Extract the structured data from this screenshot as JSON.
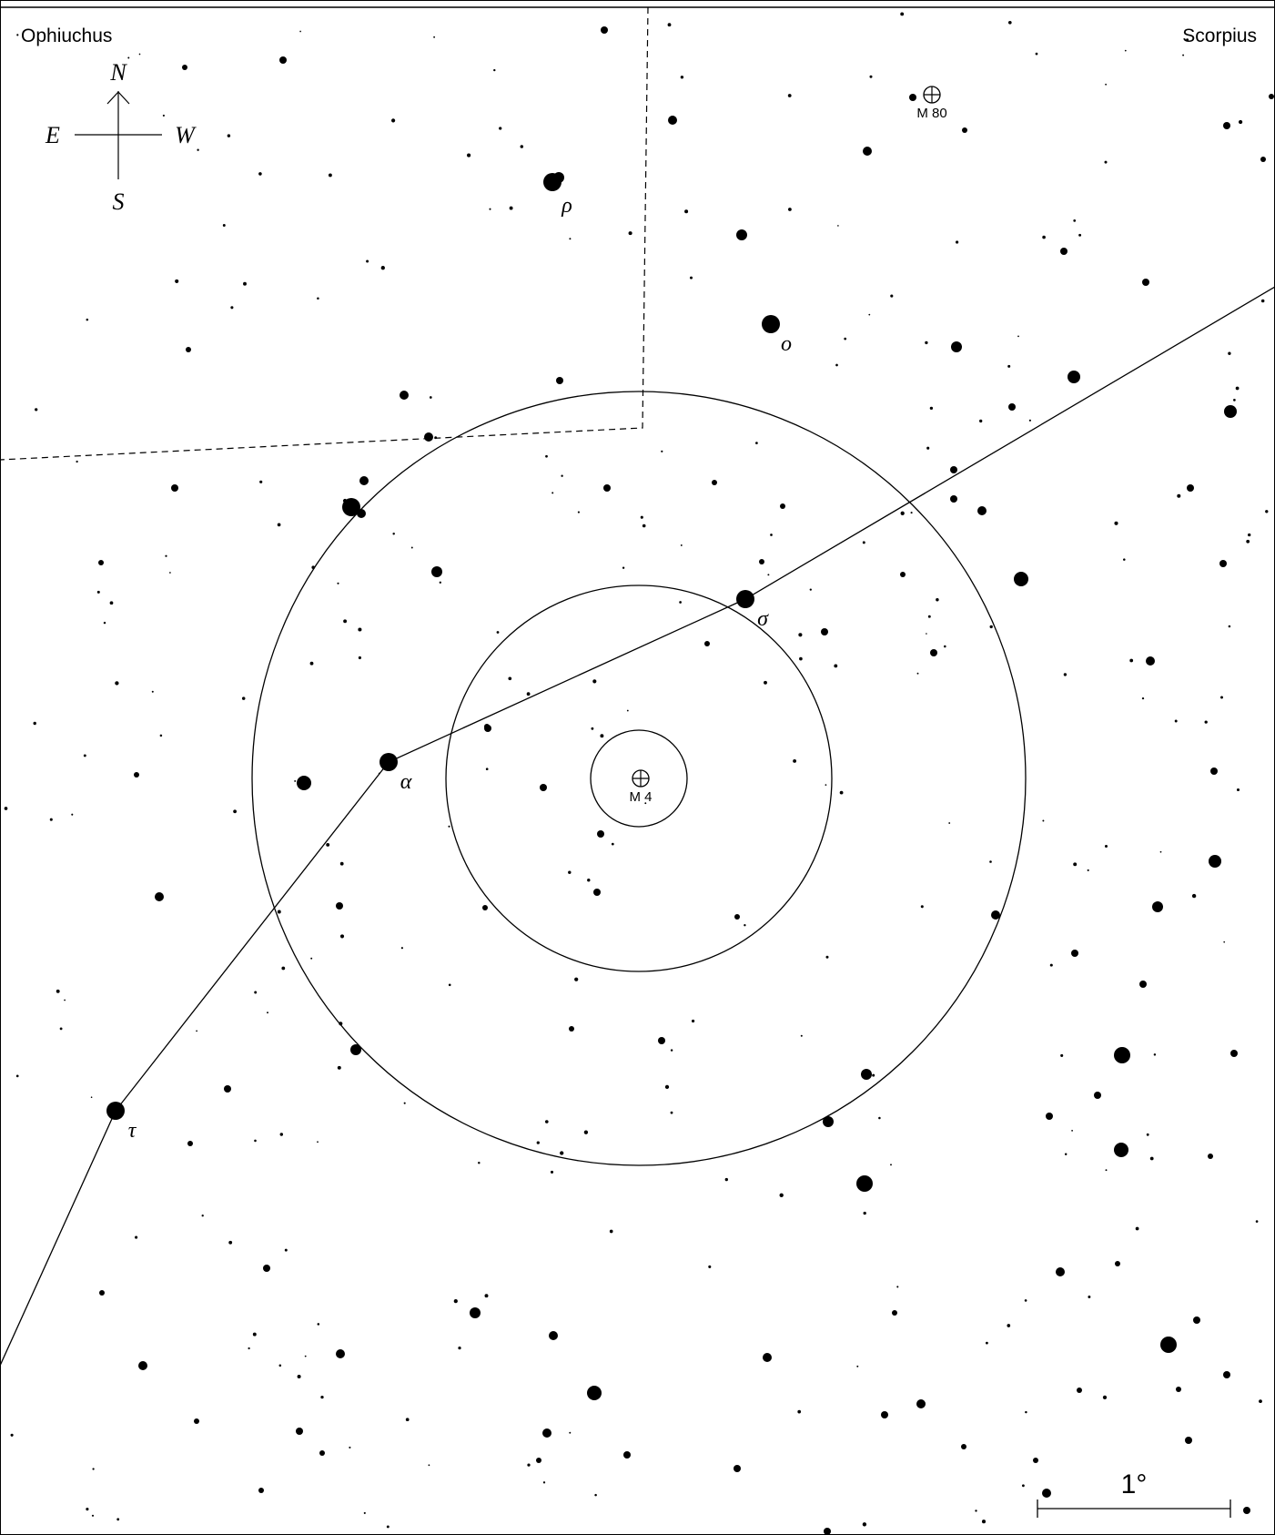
{
  "constellations": {
    "left": "Ophiuchus",
    "right": "Scorpius"
  },
  "compass": {
    "north": "N",
    "south": "S",
    "east": "E",
    "west": "W"
  },
  "objects": {
    "m4": "M 4",
    "m80": "M 80"
  },
  "star_labels": {
    "rho": "ρ",
    "omicron": "ο",
    "sigma": "σ",
    "alpha": "α",
    "tau": "τ"
  },
  "scale_bar": {
    "label": "1°"
  },
  "colors": {
    "ink": "#000000",
    "paper": "#ffffff"
  }
}
